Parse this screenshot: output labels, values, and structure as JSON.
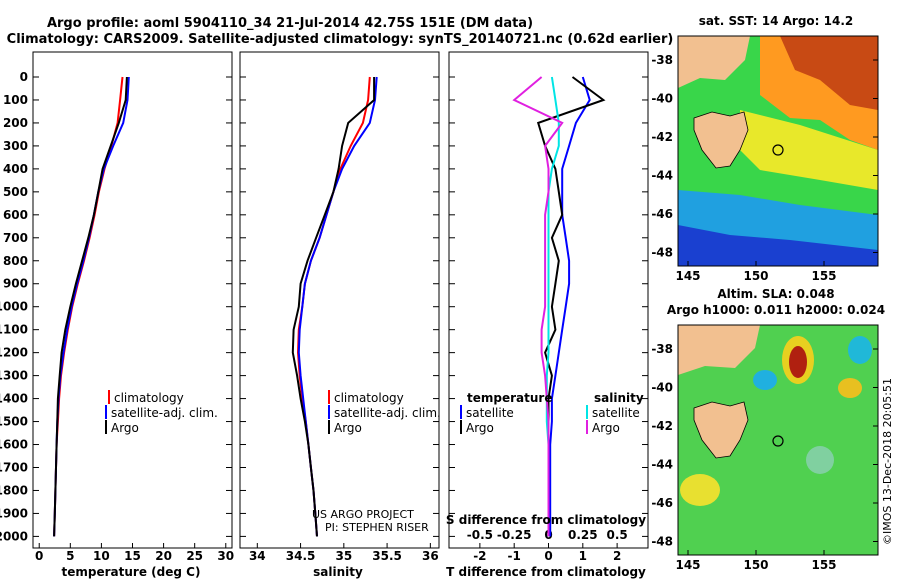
{
  "title_line1": "Argo profile: aoml 5904110_34 21-Jul-2014 42.75S 151E (DM data)",
  "title_line2": "Climatology: CARS2009. Satellite-adjusted climatology: synTS_20140721.nc (0.62d earlier)",
  "credit_line1": "US ARGO PROJECT",
  "credit_line2": "PI: STEPHEN RISER",
  "watermark": "©IMOS 13-Dec-2018 20:05:51",
  "colors": {
    "climatology": "#ff0000",
    "satellite": "#0000ff",
    "argo": "#000000",
    "s_satellite": "#00e5e5",
    "s_argo": "#e020e0",
    "land": "#f2c090"
  },
  "depth_ticks": [
    "0",
    "100",
    "200",
    "300",
    "400",
    "500",
    "600",
    "700",
    "800",
    "900",
    "1000",
    "1100",
    "1200",
    "1300",
    "1400",
    "1500",
    "1600",
    "1700",
    "1800",
    "1900",
    "2000"
  ],
  "temp_panel": {
    "xlabel": "temperature (deg C)",
    "xticks": [
      "0",
      "5",
      "10",
      "15",
      "20",
      "25",
      "30"
    ],
    "legend": [
      "climatology",
      "satellite-adj. clim.",
      "Argo"
    ]
  },
  "sal_panel": {
    "xlabel": "salinity",
    "xticks": [
      "34",
      "34.5",
      "35",
      "35.5",
      "36"
    ],
    "legend": [
      "climatology",
      "satellite-adj. clim.",
      "Argo"
    ]
  },
  "diff_panel": {
    "xlabel": "T difference from climatology",
    "xticks": [
      "-2",
      "-1",
      "0",
      "1",
      "2"
    ],
    "s_label": "S difference from climatology",
    "s_ticks": [
      "-0.5",
      "-0.25",
      "0",
      "0.25",
      "0.5"
    ],
    "legend_t_title": "temperature",
    "legend_s_title": "salinity",
    "legend_t": [
      "satellite",
      "Argo"
    ],
    "legend_s": [
      "satellite",
      "Argo"
    ]
  },
  "sst_map": {
    "title": "sat. SST: 14 Argo: 14.2",
    "yticks": [
      "-38",
      "-40",
      "-42",
      "-44",
      "-46",
      "-48"
    ],
    "xticks": [
      "145",
      "150",
      "155"
    ]
  },
  "sla_map": {
    "title_line1": "Altim. SLA: 0.048",
    "title_line2": "Argo h1000: 0.011 h2000: 0.024",
    "yticks": [
      "-38",
      "-40",
      "-42",
      "-44",
      "-46",
      "-48"
    ],
    "xticks": [
      "145",
      "150",
      "155"
    ]
  },
  "chart_data": [
    {
      "type": "line",
      "xlabel": "temperature (deg C)",
      "ylabel": "",
      "xlim": [
        -1,
        31
      ],
      "ylim": [
        2050,
        0
      ],
      "series": [
        {
          "name": "climatology",
          "x": [
            13.4,
            13.0,
            12.6,
            11.6,
            10.5,
            9.6,
            8.9,
            8.1,
            7.2,
            6.2,
            5.3,
            4.6,
            4.0,
            3.5,
            3.2,
            3.0,
            2.8,
            2.7,
            2.6,
            2.5,
            2.4
          ],
          "y": [
            0,
            100,
            200,
            300,
            400,
            500,
            600,
            700,
            800,
            900,
            1000,
            1100,
            1200,
            1300,
            1400,
            1500,
            1600,
            1700,
            1800,
            1900,
            2000
          ]
        },
        {
          "name": "satellite-adj. clim.",
          "x": [
            14.4,
            14.2,
            13.5,
            11.9,
            10.4,
            9.5,
            8.8,
            8.0,
            7.1,
            6.1,
            5.2,
            4.5,
            3.9,
            3.4,
            3.1,
            2.9,
            2.8,
            2.7,
            2.6,
            2.5,
            2.4
          ],
          "y": [
            0,
            100,
            200,
            300,
            400,
            500,
            600,
            700,
            800,
            900,
            1000,
            1100,
            1200,
            1300,
            1400,
            1500,
            1600,
            1700,
            1800,
            1900,
            2000
          ]
        },
        {
          "name": "Argo",
          "x": [
            14.1,
            13.9,
            12.8,
            11.5,
            10.2,
            9.5,
            8.8,
            7.9,
            6.9,
            5.9,
            5.0,
            4.2,
            3.6,
            3.3,
            3.0,
            2.9,
            2.8,
            2.7,
            2.6,
            2.5,
            2.4
          ],
          "y": [
            0,
            100,
            200,
            300,
            400,
            500,
            600,
            700,
            800,
            900,
            1000,
            1100,
            1200,
            1300,
            1400,
            1500,
            1600,
            1700,
            1800,
            1900,
            2000
          ]
        }
      ]
    },
    {
      "type": "line",
      "xlabel": "salinity",
      "xlim": [
        33.8,
        36.1
      ],
      "ylim": [
        2050,
        0
      ],
      "series": [
        {
          "name": "climatology",
          "x": [
            35.3,
            35.28,
            35.22,
            35.08,
            34.96,
            34.88,
            34.8,
            34.72,
            34.62,
            34.55,
            34.52,
            34.48,
            34.47,
            34.49,
            34.52,
            34.56,
            34.59,
            34.62,
            34.65,
            34.67,
            34.69
          ],
          "y": [
            0,
            100,
            200,
            300,
            400,
            500,
            600,
            700,
            800,
            900,
            1000,
            1100,
            1200,
            1300,
            1400,
            1500,
            1600,
            1700,
            1800,
            1900,
            2000
          ]
        },
        {
          "name": "satellite-adj. clim.",
          "x": [
            35.38,
            35.36,
            35.3,
            35.12,
            34.98,
            34.88,
            34.8,
            34.72,
            34.62,
            34.55,
            34.52,
            34.49,
            34.48,
            34.5,
            34.53,
            34.56,
            34.59,
            34.62,
            34.65,
            34.67,
            34.69
          ],
          "y": [
            0,
            100,
            200,
            300,
            400,
            500,
            600,
            700,
            800,
            900,
            1000,
            1100,
            1200,
            1300,
            1400,
            1500,
            1600,
            1700,
            1800,
            1900,
            2000
          ]
        },
        {
          "name": "Argo",
          "x": [
            35.35,
            35.35,
            35.05,
            34.98,
            34.94,
            34.88,
            34.78,
            34.68,
            34.58,
            34.5,
            34.48,
            34.42,
            34.41,
            34.46,
            34.5,
            34.55,
            34.59,
            34.62,
            34.65,
            34.67,
            34.69
          ],
          "y": [
            0,
            100,
            200,
            300,
            400,
            500,
            600,
            700,
            800,
            900,
            1000,
            1100,
            1200,
            1300,
            1400,
            1500,
            1600,
            1700,
            1800,
            1900,
            2000
          ]
        }
      ]
    },
    {
      "type": "line",
      "xlabel": "T difference from climatology",
      "xlim": [
        -2.9,
        2.9
      ],
      "ylim": [
        2050,
        0
      ],
      "series": [
        {
          "name": "temperature satellite",
          "x": [
            1.0,
            1.2,
            0.8,
            0.6,
            0.4,
            0.4,
            0.4,
            0.5,
            0.6,
            0.6,
            0.5,
            0.4,
            0.3,
            0.2,
            0.1,
            0.1,
            0.05,
            0.05,
            0.05,
            0.05,
            0.05
          ],
          "y": [
            0,
            100,
            200,
            300,
            400,
            500,
            600,
            700,
            800,
            900,
            1000,
            1100,
            1200,
            1300,
            1400,
            1500,
            1600,
            1700,
            1800,
            1900,
            2000
          ]
        },
        {
          "name": "temperature Argo",
          "x": [
            0.7,
            1.6,
            -0.3,
            -0.1,
            0.2,
            0.3,
            0.4,
            0.1,
            0.3,
            0.2,
            0.1,
            0.2,
            -0.1,
            0.1,
            0.0,
            0.0,
            0.0,
            0.0,
            0.0,
            0.0,
            0.0
          ],
          "y": [
            0,
            100,
            200,
            300,
            400,
            500,
            600,
            700,
            800,
            900,
            1000,
            1100,
            1200,
            1300,
            1400,
            1500,
            1600,
            1700,
            1800,
            1900,
            2000
          ]
        },
        {
          "name": "salinity satellite",
          "x": [
            0.1,
            0.2,
            0.3,
            0.3,
            0.1,
            0.0,
            0.0,
            0.0,
            0.0,
            0.0,
            0.0,
            0.0,
            0.0,
            -0.05,
            -0.05,
            -0.05,
            0.0,
            0.0,
            0.0,
            0.0,
            0.0
          ],
          "y": [
            0,
            100,
            200,
            300,
            400,
            500,
            600,
            700,
            800,
            900,
            1000,
            1100,
            1200,
            1300,
            1400,
            1500,
            1600,
            1700,
            1800,
            1900,
            2000
          ]
        },
        {
          "name": "salinity Argo",
          "x": [
            -0.2,
            -1.0,
            0.4,
            -0.1,
            0.0,
            0.0,
            -0.1,
            -0.1,
            -0.1,
            -0.1,
            -0.1,
            -0.2,
            -0.2,
            -0.1,
            -0.05,
            0.0,
            0.0,
            0.0,
            0.0,
            0.0,
            0.0
          ],
          "y": [
            0,
            100,
            200,
            300,
            400,
            500,
            600,
            700,
            800,
            900,
            1000,
            1100,
            1200,
            1300,
            1400,
            1500,
            1600,
            1700,
            1800,
            1900,
            2000
          ]
        }
      ]
    }
  ]
}
